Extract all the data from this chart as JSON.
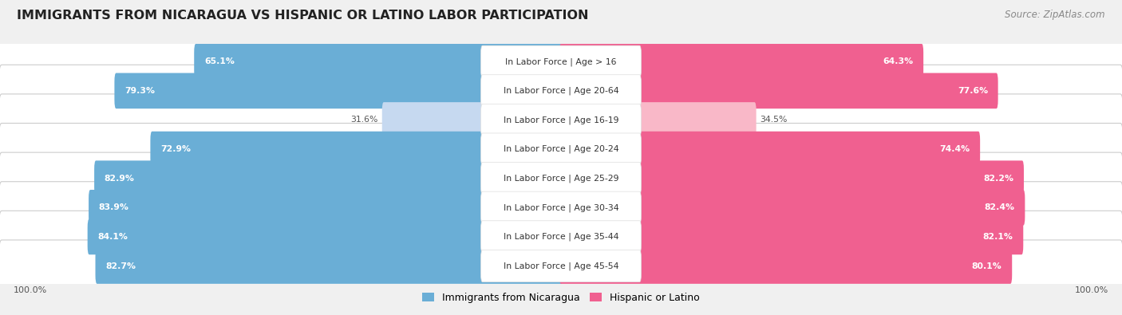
{
  "title": "IMMIGRANTS FROM NICARAGUA VS HISPANIC OR LATINO LABOR PARTICIPATION",
  "source": "Source: ZipAtlas.com",
  "categories": [
    "In Labor Force | Age > 16",
    "In Labor Force | Age 20-64",
    "In Labor Force | Age 16-19",
    "In Labor Force | Age 20-24",
    "In Labor Force | Age 25-29",
    "In Labor Force | Age 30-34",
    "In Labor Force | Age 35-44",
    "In Labor Force | Age 45-54"
  ],
  "nicaragua_values": [
    65.1,
    79.3,
    31.6,
    72.9,
    82.9,
    83.9,
    84.1,
    82.7
  ],
  "hispanic_values": [
    64.3,
    77.6,
    34.5,
    74.4,
    82.2,
    82.4,
    82.1,
    80.1
  ],
  "nicaragua_color_high": "#6aaed6",
  "nicaragua_color_low": "#c6d9f0",
  "hispanic_color_high": "#f06090",
  "hispanic_color_low": "#f9b8c8",
  "threshold": 60.0,
  "background_color": "#f0f0f0",
  "row_bg_color": "#e8e8e8",
  "legend_nicaragua": "Immigrants from Nicaragua",
  "legend_hispanic": "Hispanic or Latino",
  "max_val": 100.0,
  "title_fontsize": 11.5,
  "value_fontsize": 7.8,
  "category_fontsize": 7.8,
  "source_fontsize": 8.5
}
